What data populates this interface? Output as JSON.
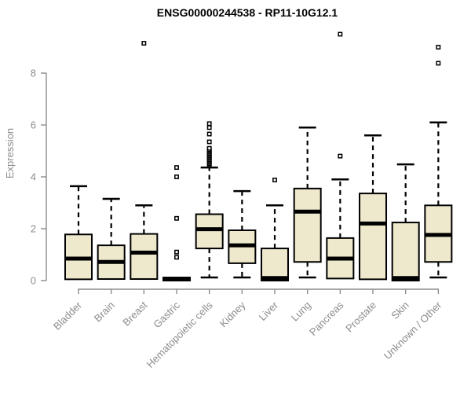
{
  "chart_data": {
    "type": "boxplot",
    "title": "ENSG00000244538 - RP11-10G12.1",
    "ylabel": "Expression",
    "xlabel": "",
    "yticks": [
      0,
      2,
      4,
      6,
      8
    ],
    "ylim": [
      0,
      9.8
    ],
    "grid": false,
    "legend": "none",
    "colors": {
      "box_fill": "#EEE8CD",
      "box_border": "#000000",
      "median": "#000000",
      "whisker": "#000000",
      "outlier": "#000000",
      "axis": "#8C8C8C",
      "title": "#000000",
      "background": "#FFFFFF"
    },
    "categories": [
      "Bladder",
      "Brain",
      "Breast",
      "Gastric",
      "Hematopoietic cells",
      "Kidney",
      "Liver",
      "Lung",
      "Pancreas",
      "Prostate",
      "Skin",
      "Unknown / Other"
    ],
    "boxes": [
      {
        "category": "Bladder",
        "low": 0.05,
        "q1": 0.05,
        "median": 0.85,
        "q3": 1.78,
        "high": 3.64,
        "outliers": []
      },
      {
        "category": "Brain",
        "low": 0.06,
        "q1": 0.06,
        "median": 0.72,
        "q3": 1.36,
        "high": 3.15,
        "outliers": []
      },
      {
        "category": "Breast",
        "low": 0.06,
        "q1": 0.06,
        "median": 1.08,
        "q3": 1.8,
        "high": 2.9,
        "outliers": [
          9.15
        ]
      },
      {
        "category": "Gastric",
        "low": 0.0,
        "q1": 0.0,
        "median": 0.05,
        "q3": 0.12,
        "high": 0.12,
        "outliers": [
          0.9,
          1.1,
          2.4,
          4.0,
          4.36
        ]
      },
      {
        "category": "Hematopoietic cells",
        "low": 0.12,
        "q1": 1.24,
        "median": 1.98,
        "q3": 2.56,
        "high": 4.36,
        "outliers": [
          4.45,
          4.5,
          4.55,
          4.6,
          4.65,
          4.7,
          4.75,
          4.8,
          4.85,
          4.9,
          4.95,
          5.0,
          5.05,
          5.1,
          5.35,
          5.65,
          5.9,
          6.05
        ]
      },
      {
        "category": "Kidney",
        "low": 0.12,
        "q1": 0.67,
        "median": 1.36,
        "q3": 1.94,
        "high": 3.45,
        "outliers": []
      },
      {
        "category": "Liver",
        "low": 0.0,
        "q1": 0.0,
        "median": 0.1,
        "q3": 1.24,
        "high": 2.9,
        "outliers": [
          3.88
        ]
      },
      {
        "category": "Lung",
        "low": 0.12,
        "q1": 0.72,
        "median": 2.66,
        "q3": 3.55,
        "high": 5.9,
        "outliers": []
      },
      {
        "category": "Pancreas",
        "low": 0.08,
        "q1": 0.08,
        "median": 0.85,
        "q3": 1.64,
        "high": 3.9,
        "outliers": [
          4.8,
          9.5
        ]
      },
      {
        "category": "Prostate",
        "low": 0.05,
        "q1": 0.05,
        "median": 2.2,
        "q3": 3.36,
        "high": 5.6,
        "outliers": []
      },
      {
        "category": "Skin",
        "low": 0.0,
        "q1": 0.0,
        "median": 0.1,
        "q3": 2.24,
        "high": 4.48,
        "outliers": []
      },
      {
        "category": "Unknown / Other",
        "low": 0.12,
        "q1": 0.72,
        "median": 1.76,
        "q3": 2.9,
        "high": 6.1,
        "outliers": [
          8.38,
          9.0
        ]
      }
    ]
  }
}
